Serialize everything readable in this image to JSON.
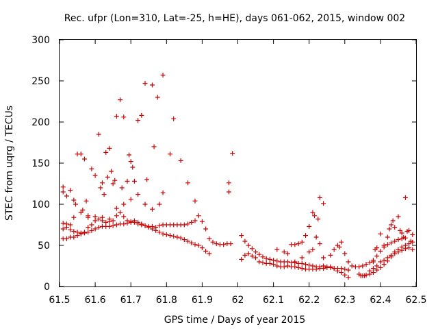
{
  "chart_data": {
    "type": "scatter",
    "title": "Rec. ufpr (Lon=310, Lat=-25, h=HE), days 061-062, 2015, window 002",
    "xlabel": "GPS time / Days of year 2015",
    "ylabel": "STEC from uqrg / TECUs",
    "xlim": [
      61.5,
      62.5
    ],
    "ylim": [
      0,
      300
    ],
    "xticks": [
      61.5,
      61.6,
      61.7,
      61.8,
      61.9,
      62.0,
      62.1,
      62.2,
      62.3,
      62.4,
      62.5
    ],
    "xtick_labels": [
      "61.5",
      "61.6",
      "61.7",
      "61.8",
      "61.9",
      "62",
      "62.1",
      "62.2",
      "62.3",
      "62.4",
      "62.5"
    ],
    "yticks": [
      0,
      50,
      100,
      150,
      200,
      250,
      300
    ],
    "ytick_labels": [
      "0",
      "50",
      "100",
      "150",
      "200",
      "250",
      "300"
    ],
    "marker": "+",
    "color": "#cc0000",
    "grid": false,
    "series": [
      {
        "name": "STEC",
        "points": [
          [
            61.51,
            121
          ],
          [
            61.51,
            115
          ],
          [
            61.52,
            110
          ],
          [
            61.53,
            117
          ],
          [
            61.54,
            105
          ],
          [
            61.545,
            100
          ],
          [
            61.55,
            161
          ],
          [
            61.56,
            161
          ],
          [
            61.565,
            93
          ],
          [
            61.57,
            155
          ],
          [
            61.575,
            104
          ],
          [
            61.58,
            86
          ],
          [
            61.59,
            143
          ],
          [
            61.6,
            135
          ],
          [
            61.61,
            185
          ],
          [
            61.615,
            120
          ],
          [
            61.62,
            126
          ],
          [
            61.625,
            112
          ],
          [
            61.63,
            163
          ],
          [
            61.635,
            133
          ],
          [
            61.64,
            168
          ],
          [
            61.645,
            140
          ],
          [
            61.65,
            125
          ],
          [
            61.655,
            129
          ],
          [
            61.66,
            207
          ],
          [
            61.67,
            227
          ],
          [
            61.675,
            120
          ],
          [
            61.68,
            206
          ],
          [
            61.69,
            128
          ],
          [
            61.695,
            160
          ],
          [
            61.7,
            152
          ],
          [
            61.705,
            145
          ],
          [
            61.71,
            128
          ],
          [
            61.72,
            202
          ],
          [
            61.73,
            208
          ],
          [
            61.74,
            247
          ],
          [
            61.745,
            130
          ],
          [
            61.76,
            245
          ],
          [
            61.765,
            170
          ],
          [
            61.775,
            230
          ],
          [
            61.78,
            100
          ],
          [
            61.79,
            257
          ],
          [
            61.79,
            114
          ],
          [
            61.81,
            161
          ],
          [
            61.82,
            204
          ],
          [
            61.84,
            153
          ],
          [
            61.86,
            126
          ],
          [
            61.88,
            104
          ],
          [
            61.975,
            126
          ],
          [
            61.975,
            115
          ],
          [
            61.985,
            162
          ],
          [
            61.51,
            58
          ],
          [
            61.52,
            58
          ],
          [
            61.53,
            60
          ],
          [
            61.54,
            60
          ],
          [
            61.55,
            62
          ],
          [
            61.56,
            65
          ],
          [
            61.57,
            65
          ],
          [
            61.58,
            66
          ],
          [
            61.59,
            68
          ],
          [
            61.6,
            70
          ],
          [
            61.61,
            72
          ],
          [
            61.62,
            73
          ],
          [
            61.63,
            73
          ],
          [
            61.64,
            73
          ],
          [
            61.65,
            74
          ],
          [
            61.66,
            75
          ],
          [
            61.67,
            76
          ],
          [
            61.68,
            76
          ],
          [
            61.69,
            77
          ],
          [
            61.7,
            78
          ],
          [
            61.71,
            78
          ],
          [
            61.72,
            78
          ],
          [
            61.73,
            76
          ],
          [
            61.74,
            74
          ],
          [
            61.75,
            72
          ],
          [
            61.76,
            70
          ],
          [
            61.77,
            68
          ],
          [
            61.78,
            66
          ],
          [
            61.79,
            64
          ],
          [
            61.8,
            63
          ],
          [
            61.81,
            62
          ],
          [
            61.82,
            61
          ],
          [
            61.83,
            60
          ],
          [
            61.84,
            59
          ],
          [
            61.85,
            57
          ],
          [
            61.86,
            55
          ],
          [
            61.87,
            53
          ],
          [
            61.88,
            51
          ],
          [
            61.89,
            50
          ],
          [
            61.9,
            47
          ],
          [
            61.91,
            43
          ],
          [
            61.92,
            40
          ],
          [
            61.51,
            70
          ],
          [
            61.52,
            72
          ],
          [
            61.53,
            69
          ],
          [
            61.54,
            67
          ],
          [
            61.55,
            66
          ],
          [
            61.56,
            64
          ],
          [
            61.57,
            66
          ],
          [
            61.58,
            72
          ],
          [
            61.59,
            75
          ],
          [
            61.6,
            80
          ],
          [
            61.61,
            82
          ],
          [
            61.62,
            80
          ],
          [
            61.63,
            78
          ],
          [
            61.64,
            79
          ],
          [
            61.65,
            80
          ],
          [
            61.66,
            86
          ],
          [
            61.67,
            90
          ],
          [
            61.68,
            85
          ],
          [
            61.69,
            80
          ],
          [
            61.7,
            79
          ],
          [
            61.71,
            80
          ],
          [
            61.72,
            76
          ],
          [
            61.73,
            75
          ],
          [
            61.74,
            74
          ],
          [
            61.75,
            73
          ],
          [
            61.76,
            73
          ],
          [
            61.77,
            72
          ],
          [
            61.78,
            74
          ],
          [
            61.79,
            75
          ],
          [
            61.8,
            75
          ],
          [
            61.81,
            75
          ],
          [
            61.82,
            75
          ],
          [
            61.83,
            75
          ],
          [
            61.84,
            75
          ],
          [
            61.85,
            75
          ],
          [
            61.86,
            76
          ],
          [
            61.87,
            78
          ],
          [
            61.88,
            80
          ],
          [
            61.89,
            86
          ],
          [
            61.9,
            79
          ],
          [
            61.91,
            70
          ],
          [
            61.92,
            58
          ],
          [
            61.93,
            54
          ],
          [
            61.94,
            52
          ],
          [
            61.95,
            51
          ],
          [
            61.96,
            51
          ],
          [
            61.97,
            52
          ],
          [
            61.98,
            52
          ],
          [
            61.51,
            77
          ],
          [
            61.52,
            76
          ],
          [
            61.53,
            75
          ],
          [
            61.54,
            84
          ],
          [
            61.56,
            90
          ],
          [
            61.58,
            84
          ],
          [
            61.6,
            85
          ],
          [
            61.62,
            84
          ],
          [
            61.64,
            82
          ],
          [
            61.66,
            95
          ],
          [
            61.68,
            100
          ],
          [
            61.7,
            106
          ],
          [
            61.72,
            112
          ],
          [
            61.74,
            100
          ],
          [
            61.76,
            94
          ],
          [
            62.01,
            62
          ],
          [
            62.02,
            55
          ],
          [
            62.03,
            50
          ],
          [
            62.04,
            46
          ],
          [
            62.05,
            42
          ],
          [
            62.06,
            39
          ],
          [
            62.07,
            36
          ],
          [
            62.08,
            34
          ],
          [
            62.09,
            33
          ],
          [
            62.1,
            32
          ],
          [
            62.11,
            31
          ],
          [
            62.12,
            30
          ],
          [
            62.13,
            30
          ],
          [
            62.14,
            30
          ],
          [
            62.15,
            29
          ],
          [
            62.16,
            29
          ],
          [
            62.17,
            28
          ],
          [
            62.18,
            28
          ],
          [
            62.19,
            27
          ],
          [
            62.2,
            26
          ],
          [
            62.21,
            25
          ],
          [
            62.22,
            24
          ],
          [
            62.23,
            24
          ],
          [
            62.24,
            25
          ],
          [
            62.25,
            24
          ],
          [
            62.26,
            23
          ],
          [
            62.27,
            22
          ],
          [
            62.28,
            22
          ],
          [
            62.29,
            22
          ],
          [
            62.3,
            21
          ],
          [
            62.31,
            20
          ],
          [
            62.01,
            33
          ],
          [
            62.02,
            38
          ],
          [
            62.03,
            40
          ],
          [
            62.04,
            37
          ],
          [
            62.05,
            35
          ],
          [
            62.06,
            30
          ],
          [
            62.07,
            29
          ],
          [
            62.08,
            28
          ],
          [
            62.09,
            28
          ],
          [
            62.1,
            27
          ],
          [
            62.11,
            25
          ],
          [
            62.12,
            24
          ],
          [
            62.13,
            24
          ],
          [
            62.14,
            25
          ],
          [
            62.15,
            24
          ],
          [
            62.16,
            24
          ],
          [
            62.17,
            23
          ],
          [
            62.18,
            22
          ],
          [
            62.19,
            21
          ],
          [
            62.2,
            21
          ],
          [
            62.21,
            21
          ],
          [
            62.22,
            21
          ],
          [
            62.23,
            22
          ],
          [
            62.24,
            22
          ],
          [
            62.25,
            23
          ],
          [
            62.26,
            24
          ],
          [
            62.27,
            22
          ],
          [
            62.28,
            19
          ],
          [
            62.29,
            17
          ],
          [
            62.3,
            14
          ],
          [
            62.31,
            11
          ],
          [
            62.11,
            45
          ],
          [
            62.13,
            42
          ],
          [
            62.14,
            40
          ],
          [
            62.15,
            51
          ],
          [
            62.16,
            51
          ],
          [
            62.17,
            52
          ],
          [
            62.18,
            54
          ],
          [
            62.19,
            62
          ],
          [
            62.2,
            73
          ],
          [
            62.21,
            90
          ],
          [
            62.215,
            86
          ],
          [
            62.225,
            82
          ],
          [
            62.23,
            108
          ],
          [
            62.24,
            101
          ],
          [
            62.22,
            60
          ],
          [
            62.23,
            52
          ],
          [
            62.24,
            35
          ],
          [
            62.26,
            38
          ],
          [
            62.27,
            45
          ],
          [
            62.28,
            50
          ],
          [
            62.285,
            48
          ],
          [
            62.29,
            54
          ],
          [
            62.3,
            40
          ],
          [
            62.31,
            30
          ],
          [
            62.32,
            25
          ],
          [
            62.21,
            45
          ],
          [
            62.2,
            42
          ],
          [
            62.18,
            35
          ],
          [
            62.16,
            30
          ],
          [
            62.33,
            24
          ],
          [
            62.34,
            24
          ],
          [
            62.35,
            25
          ],
          [
            62.36,
            27
          ],
          [
            62.37,
            29
          ],
          [
            62.38,
            32
          ],
          [
            62.39,
            37
          ],
          [
            62.4,
            43
          ],
          [
            62.41,
            48
          ],
          [
            62.42,
            51
          ],
          [
            62.43,
            53
          ],
          [
            62.44,
            55
          ],
          [
            62.45,
            57
          ],
          [
            62.46,
            58
          ],
          [
            62.47,
            59
          ],
          [
            62.34,
            15
          ],
          [
            62.345,
            13
          ],
          [
            62.35,
            13
          ],
          [
            62.355,
            13
          ],
          [
            62.36,
            14
          ],
          [
            62.37,
            15
          ],
          [
            62.38,
            17
          ],
          [
            62.39,
            20
          ],
          [
            62.4,
            23
          ],
          [
            62.41,
            27
          ],
          [
            62.42,
            31
          ],
          [
            62.43,
            36
          ],
          [
            62.44,
            42
          ],
          [
            62.45,
            45
          ],
          [
            62.46,
            48
          ],
          [
            62.47,
            50
          ],
          [
            62.48,
            52
          ],
          [
            62.49,
            54
          ],
          [
            62.38,
            30
          ],
          [
            62.385,
            45
          ],
          [
            62.39,
            47
          ],
          [
            62.4,
            64
          ],
          [
            62.41,
            50
          ],
          [
            62.42,
            60
          ],
          [
            62.425,
            70
          ],
          [
            62.43,
            75
          ],
          [
            62.435,
            80
          ],
          [
            62.44,
            72
          ],
          [
            62.45,
            85
          ],
          [
            62.455,
            68
          ],
          [
            62.46,
            65
          ],
          [
            62.465,
            60
          ],
          [
            62.47,
            108
          ],
          [
            62.475,
            67
          ],
          [
            62.48,
            68
          ],
          [
            62.485,
            55
          ],
          [
            62.49,
            63
          ],
          [
            62.49,
            45
          ],
          [
            62.48,
            47
          ],
          [
            62.47,
            46
          ],
          [
            62.46,
            44
          ],
          [
            62.45,
            42
          ],
          [
            62.44,
            40
          ],
          [
            62.43,
            38
          ],
          [
            62.42,
            35
          ],
          [
            62.41,
            32
          ],
          [
            62.4,
            30
          ],
          [
            62.39,
            25
          ],
          [
            62.38,
            22
          ],
          [
            62.37,
            19
          ]
        ]
      }
    ]
  }
}
